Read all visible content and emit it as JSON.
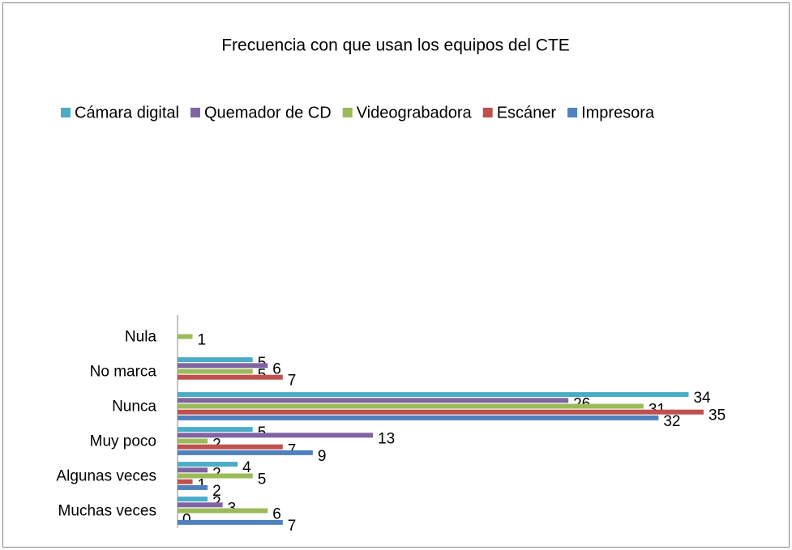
{
  "chart_data": {
    "type": "bar",
    "orientation": "horizontal",
    "title": "Frecuencia con que usan los equipos del CTE",
    "categories": [
      "Muchas veces",
      "Algunas veces",
      "Muy poco",
      "Nunca",
      "No marca",
      "Nula"
    ],
    "series": [
      {
        "name": "Cámara digital",
        "color": "#4bacc6",
        "values": [
          2,
          4,
          5,
          34,
          5,
          null
        ]
      },
      {
        "name": "Quemador de CD",
        "color": "#8064a2",
        "values": [
          3,
          2,
          13,
          26,
          6,
          null
        ]
      },
      {
        "name": "Videograbadora",
        "color": "#9bbb59",
        "values": [
          6,
          5,
          2,
          31,
          5,
          1
        ]
      },
      {
        "name": "Escáner",
        "color": "#c0504d",
        "values": [
          0,
          1,
          7,
          35,
          7,
          null
        ]
      },
      {
        "name": "Impresora",
        "color": "#4f81bd",
        "values": [
          7,
          2,
          9,
          32,
          null,
          null
        ]
      }
    ],
    "xlim": [
      0,
      35
    ],
    "legend": "top"
  }
}
